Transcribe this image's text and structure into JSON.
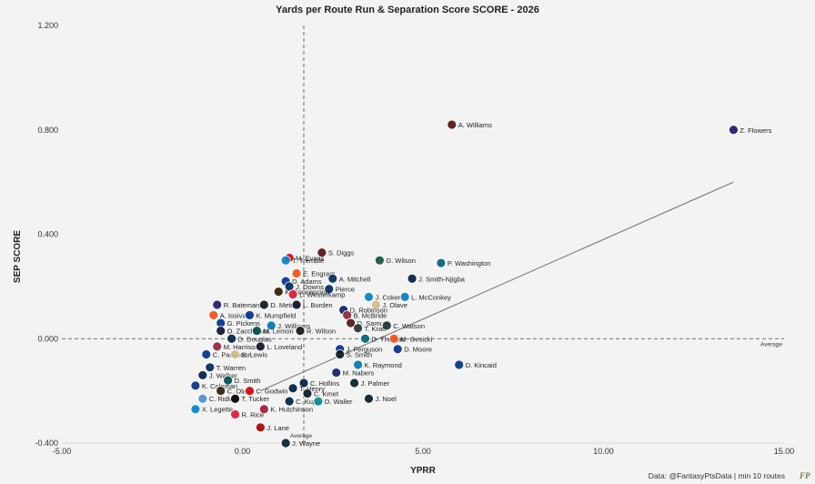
{
  "chart_data": {
    "type": "scatter",
    "title": "Yards per Route Run & Separation Score SCORE - 2026",
    "xlabel": "YPRR",
    "ylabel": "SEP SCORE",
    "xlim": [
      -5,
      15
    ],
    "ylim": [
      -0.4,
      1.2
    ],
    "x_ticks": [
      -5,
      0,
      5,
      10,
      15
    ],
    "x_tick_labels": [
      "-5.00",
      "0.00",
      "5.00",
      "10.00",
      "15.00"
    ],
    "y_ticks": [
      -0.4,
      0,
      0.4,
      0.8,
      1.2
    ],
    "y_tick_labels": [
      "-0.400",
      "0.000",
      "0.400",
      "0.800",
      "1.200"
    ],
    "average_x": 1.7,
    "average_y": 0.0,
    "average_label": "Average",
    "trend_line": {
      "x": [
        0.5,
        13.6
      ],
      "y": [
        -0.2,
        0.6
      ]
    },
    "colors": {
      "trend": "#777777",
      "average_line": "#444444",
      "background": "#f3f3f3"
    },
    "points": [
      {
        "label": "Z. Flowers",
        "x": 13.6,
        "y": 0.8,
        "team": "BAL",
        "color": "#241773"
      },
      {
        "label": "A. Williams",
        "x": 5.8,
        "y": 0.82,
        "team": "WAS",
        "color": "#5a1414"
      },
      {
        "label": "S. Diggs",
        "x": 2.2,
        "y": 0.33,
        "team": "WAS",
        "color": "#5a1414"
      },
      {
        "label": "M. Evans",
        "x": 1.3,
        "y": 0.31,
        "team": "TB",
        "color": "#d50a0a"
      },
      {
        "label": "T. Tremble",
        "x": 1.2,
        "y": 0.3,
        "team": "CAR",
        "color": "#0085ca"
      },
      {
        "label": "G. Wilson",
        "x": 3.8,
        "y": 0.3,
        "team": "NYJ",
        "color": "#125740"
      },
      {
        "label": "P. Washington",
        "x": 5.5,
        "y": 0.29,
        "team": "JAX",
        "color": "#006778"
      },
      {
        "label": "E. Engram",
        "x": 1.5,
        "y": 0.25,
        "team": "DEN",
        "color": "#fb4f14"
      },
      {
        "label": "A. Mitchell",
        "x": 2.5,
        "y": 0.23,
        "team": "IND",
        "color": "#002c5f"
      },
      {
        "label": "J. Smith-Njigba",
        "x": 4.7,
        "y": 0.23,
        "team": "SEA",
        "color": "#002244"
      },
      {
        "label": "D. Adams",
        "x": 1.2,
        "y": 0.22,
        "team": "LAR",
        "color": "#003594"
      },
      {
        "label": "J. Downs",
        "x": 1.3,
        "y": 0.2,
        "team": "IND",
        "color": "#002c5f"
      },
      {
        "label": "Pierce",
        "x": 2.4,
        "y": 0.19,
        "team": "IND",
        "color": "#002c5f"
      },
      {
        "label": "K. Concepcion",
        "x": 1.0,
        "y": 0.18,
        "team": "CLE",
        "color": "#311d00"
      },
      {
        "label": "L. Westerkamp",
        "x": 1.4,
        "y": 0.17,
        "team": "KC",
        "color": "#e31837"
      },
      {
        "label": "J. Coker",
        "x": 3.5,
        "y": 0.16,
        "team": "CAR",
        "color": "#0085ca"
      },
      {
        "label": "L. McConkey",
        "x": 4.5,
        "y": 0.16,
        "team": "LAC",
        "color": "#0080c6"
      },
      {
        "label": "R. Bateman",
        "x": -0.7,
        "y": 0.13,
        "team": "BAL",
        "color": "#241773"
      },
      {
        "label": "D. Metcalf",
        "x": 0.6,
        "y": 0.13,
        "team": "PIT",
        "color": "#101820"
      },
      {
        "label": "L. Burden",
        "x": 1.5,
        "y": 0.13,
        "team": "CHI",
        "color": "#0b162a"
      },
      {
        "label": "J. Olave",
        "x": 3.7,
        "y": 0.13,
        "team": "NO",
        "color": "#d3bc8d"
      },
      {
        "label": "D. Robinson",
        "x": 2.8,
        "y": 0.11,
        "team": "NYG",
        "color": "#0b2265"
      },
      {
        "label": "A. Iosivas",
        "x": -0.8,
        "y": 0.09,
        "team": "CIN",
        "color": "#fb4f14"
      },
      {
        "label": "K. Mumpfield",
        "x": 0.2,
        "y": 0.09,
        "team": "LAR",
        "color": "#003594"
      },
      {
        "label": "B. McBride",
        "x": 2.9,
        "y": 0.09,
        "team": "ARI",
        "color": "#97233f"
      },
      {
        "label": "G. Pickens",
        "x": -0.6,
        "y": 0.06,
        "team": "DAL",
        "color": "#003594"
      },
      {
        "label": "D. Samuel",
        "x": 3.0,
        "y": 0.06,
        "team": "WAS",
        "color": "#5a1414"
      },
      {
        "label": "C. Watson",
        "x": 4.0,
        "y": 0.05,
        "team": "GB",
        "color": "#203731"
      },
      {
        "label": "J. Williams",
        "x": 0.8,
        "y": 0.05,
        "team": "DET",
        "color": "#0076b6"
      },
      {
        "label": "T. Kraft",
        "x": 3.2,
        "y": 0.04,
        "team": "GB",
        "color": "#203731"
      },
      {
        "label": "O. Zaccheaus",
        "x": -0.6,
        "y": 0.03,
        "team": "CHI",
        "color": "#0b162a"
      },
      {
        "label": "M. Lemon",
        "x": 0.4,
        "y": 0.03,
        "team": "PHI",
        "color": "#004c54"
      },
      {
        "label": "R. Wilson",
        "x": 1.6,
        "y": 0.03,
        "team": "PIT",
        "color": "#101820"
      },
      {
        "label": "D. Douglas",
        "x": -0.3,
        "y": 0.0,
        "team": "NE",
        "color": "#002244"
      },
      {
        "label": "D. Thomas",
        "x": 3.4,
        "y": 0.0,
        "team": "JAX",
        "color": "#006778"
      },
      {
        "label": "M. Gesicki",
        "x": 4.2,
        "y": 0.0,
        "team": "CIN",
        "color": "#fb4f14"
      },
      {
        "label": "M. Harrison",
        "x": -0.7,
        "y": -0.03,
        "team": "ARI",
        "color": "#97233f"
      },
      {
        "label": "L. Loveland",
        "x": 0.5,
        "y": -0.03,
        "team": "CHI",
        "color": "#0b162a"
      },
      {
        "label": "J. Ferguson",
        "x": 2.7,
        "y": -0.04,
        "team": "DAL",
        "color": "#003594"
      },
      {
        "label": "D. Moore",
        "x": 4.3,
        "y": -0.04,
        "team": "BUF",
        "color": "#00338d"
      },
      {
        "label": "C. Parkinson",
        "x": -1.0,
        "y": -0.06,
        "team": "LAR",
        "color": "#003594"
      },
      {
        "label": "S. Lewis",
        "x": -0.2,
        "y": -0.06,
        "team": "NO",
        "color": "#d3bc8d"
      },
      {
        "label": "S. Smith",
        "x": 2.7,
        "y": -0.06,
        "team": "PIT",
        "color": "#101820"
      },
      {
        "label": "D. Kincaid",
        "x": 6.0,
        "y": -0.1,
        "team": "BUF",
        "color": "#00338d"
      },
      {
        "label": "K. Raymond",
        "x": 3.2,
        "y": -0.1,
        "team": "DET",
        "color": "#0076b6"
      },
      {
        "label": "T. Warren",
        "x": -0.9,
        "y": -0.11,
        "team": "IND",
        "color": "#002c5f"
      },
      {
        "label": "M. Nabers",
        "x": 2.6,
        "y": -0.13,
        "team": "NYG",
        "color": "#0b2265"
      },
      {
        "label": "J. Walker",
        "x": -1.1,
        "y": -0.14,
        "team": "SEA",
        "color": "#002244"
      },
      {
        "label": "D. Smith",
        "x": -0.4,
        "y": -0.16,
        "team": "PHI",
        "color": "#004c54"
      },
      {
        "label": "C. Hollins",
        "x": 1.7,
        "y": -0.17,
        "team": "NE",
        "color": "#002244"
      },
      {
        "label": "J. Palmer",
        "x": 3.1,
        "y": -0.17,
        "team": "HOU",
        "color": "#03202f"
      },
      {
        "label": "K. Coleman",
        "x": -1.3,
        "y": -0.18,
        "team": "BUF",
        "color": "#00338d"
      },
      {
        "label": "T. Henry",
        "x": 1.4,
        "y": -0.19,
        "team": "NE",
        "color": "#002244"
      },
      {
        "label": "C. Olave",
        "x": -0.6,
        "y": -0.2,
        "team": "CLE",
        "color": "#311d00"
      },
      {
        "label": "C. Godwin",
        "x": 0.2,
        "y": -0.2,
        "team": "TB",
        "color": "#d50a0a"
      },
      {
        "label": "C. Kmet",
        "x": 1.8,
        "y": -0.21,
        "team": "CHI",
        "color": "#0b162a"
      },
      {
        "label": "C. Ridley",
        "x": -1.1,
        "y": -0.23,
        "team": "TEN",
        "color": "#4b92db"
      },
      {
        "label": "T. Tucker",
        "x": -0.2,
        "y": -0.23,
        "team": "LV",
        "color": "#000000"
      },
      {
        "label": "C. Kupp",
        "x": 1.3,
        "y": -0.24,
        "team": "SEA",
        "color": "#002244"
      },
      {
        "label": "D. Waller",
        "x": 2.1,
        "y": -0.24,
        "team": "MIA",
        "color": "#008e97"
      },
      {
        "label": "J. Noel",
        "x": 3.5,
        "y": -0.23,
        "team": "HOU",
        "color": "#03202f"
      },
      {
        "label": "X. Legette",
        "x": -1.3,
        "y": -0.27,
        "team": "CAR",
        "color": "#0085ca"
      },
      {
        "label": "K. Hutchinson",
        "x": 0.6,
        "y": -0.27,
        "team": "ATL",
        "color": "#a71930"
      },
      {
        "label": "R. Rice",
        "x": -0.2,
        "y": -0.29,
        "team": "KC",
        "color": "#e31837"
      },
      {
        "label": "J. Lane",
        "x": 0.5,
        "y": -0.34,
        "team": "SF",
        "color": "#aa0000"
      },
      {
        "label": "J. Wayne",
        "x": 1.2,
        "y": -0.4,
        "team": "HOU",
        "color": "#03202f"
      }
    ]
  },
  "credit": "Data: @FantasyPtsData | min 10 routes",
  "logo_text": "FP"
}
